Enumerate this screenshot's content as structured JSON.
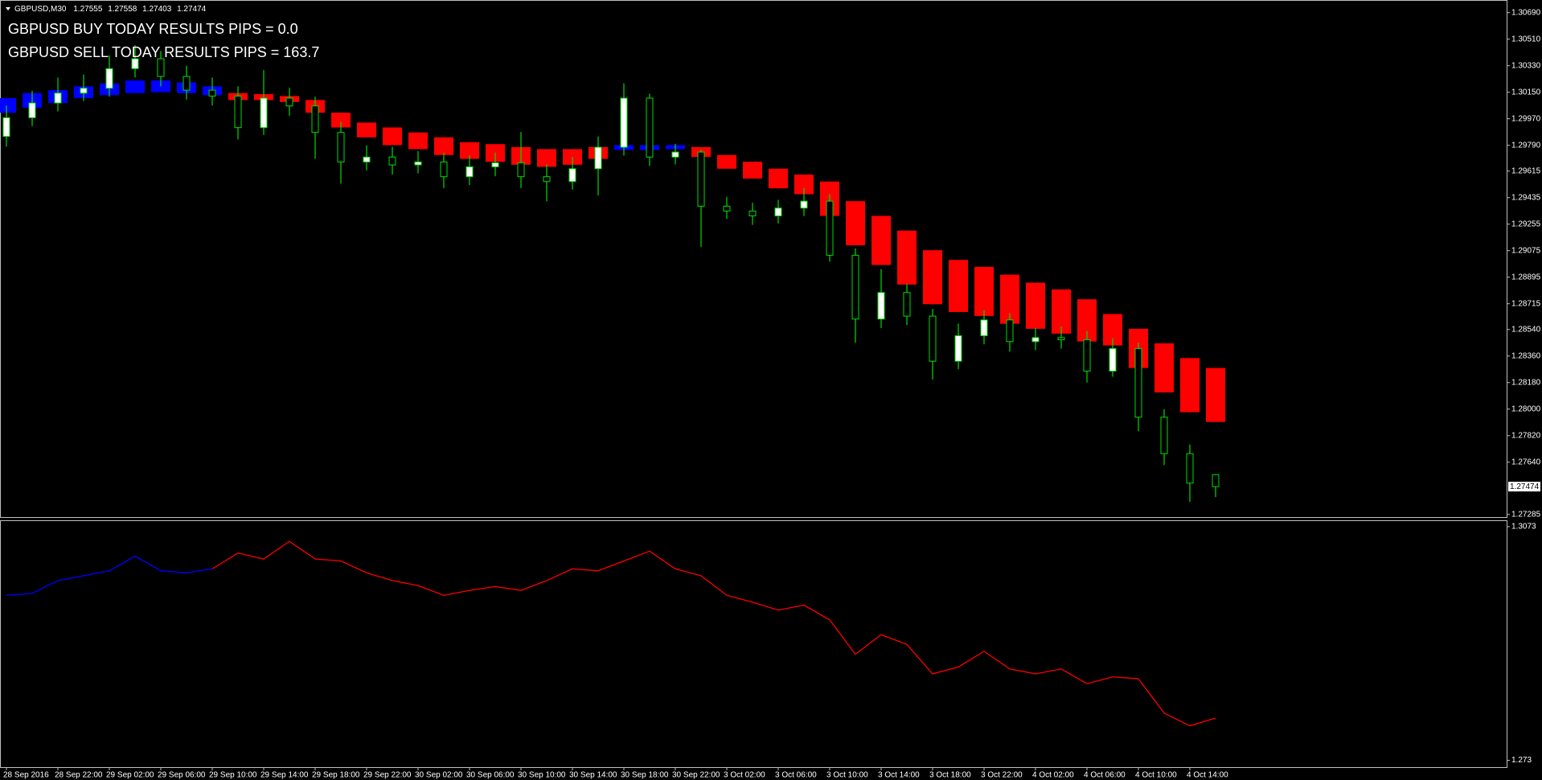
{
  "chart_data": [
    {
      "type": "candlestick",
      "symbol": "GBPUSD,M30",
      "annotations": [
        "GBPUSD BUY TODAY RESULTS PIPS = 0.0",
        "GBPUSD SELL TODAY RESULTS PIPS = 163.7"
      ],
      "open": [
        1.2985,
        1.29977,
        1.30077,
        1.30144,
        1.30177,
        1.3031,
        1.30377,
        1.30257,
        1.30164,
        1.30124,
        1.2991,
        1.3011,
        1.30057,
        1.29877,
        1.29677,
        1.2971,
        1.29657,
        1.29677,
        1.29577,
        1.29644,
        1.29671,
        1.29577,
        1.29544,
        1.29631,
        1.29777,
        1.3011,
        1.2971,
        1.29744,
        1.29377,
        1.29344,
        1.29311,
        1.29364,
        1.29411,
        1.29044,
        1.28611,
        1.28791,
        1.28631,
        1.28325,
        1.28498,
        1.28605,
        1.28458,
        1.28485,
        1.28471,
        1.28258,
        1.28411,
        1.27945,
        1.27698,
        1.27555
      ],
      "high": [
        1.3006,
        1.3016,
        1.3025,
        1.3027,
        1.304,
        1.3047,
        1.3043,
        1.3033,
        1.3025,
        1.3019,
        1.303,
        1.3018,
        1.3012,
        1.2995,
        1.2979,
        1.2978,
        1.2975,
        1.2974,
        1.2972,
        1.2974,
        1.2988,
        1.2966,
        1.2971,
        1.2985,
        1.3021,
        1.3014,
        1.298,
        1.2976,
        1.2944,
        1.294,
        1.2942,
        1.295,
        1.2946,
        1.2909,
        1.2895,
        1.2885,
        1.2868,
        1.2858,
        1.2867,
        1.2865,
        1.2855,
        1.2856,
        1.2853,
        1.2848,
        1.2845,
        1.28,
        1.2776,
        1.27558
      ],
      "low": [
        1.2978,
        1.2992,
        1.3002,
        1.3009,
        1.3012,
        1.3025,
        1.3019,
        1.301,
        1.3006,
        1.2983,
        1.2986,
        1.2999,
        1.297,
        1.2953,
        1.2962,
        1.2959,
        1.296,
        1.295,
        1.2952,
        1.2958,
        1.295,
        1.2941,
        1.2949,
        1.2945,
        1.2972,
        1.2965,
        1.2966,
        1.291,
        1.2929,
        1.2925,
        1.2926,
        1.2931,
        1.29,
        1.2845,
        1.2855,
        1.2857,
        1.282,
        1.2827,
        1.2844,
        1.2839,
        1.284,
        1.2841,
        1.2818,
        1.2822,
        1.2785,
        1.2762,
        1.2737,
        1.27403
      ],
      "close": [
        1.29977,
        1.30077,
        1.30144,
        1.30177,
        1.3031,
        1.30377,
        1.30257,
        1.30164,
        1.30124,
        1.2991,
        1.3011,
        1.30057,
        1.29877,
        1.29677,
        1.2971,
        1.29657,
        1.29677,
        1.29577,
        1.29644,
        1.29671,
        1.29577,
        1.29544,
        1.29631,
        1.29777,
        1.3011,
        1.2971,
        1.29744,
        1.29377,
        1.29344,
        1.29311,
        1.29364,
        1.29411,
        1.29044,
        1.28611,
        1.28791,
        1.28631,
        1.28325,
        1.28498,
        1.28605,
        1.28458,
        1.28485,
        1.28471,
        1.28258,
        1.28411,
        1.27945,
        1.27698,
        1.27498,
        1.27474
      ],
      "up_color": "#ffffff",
      "down_color": "#000000",
      "wick_color": "#00dd00",
      "band": {
        "upper": [
          1.3011,
          1.30144,
          1.30164,
          1.3019,
          1.3021,
          1.3023,
          1.3023,
          1.30217,
          1.3019,
          1.30144,
          1.30137,
          1.30124,
          1.30097,
          1.30011,
          1.29944,
          1.29911,
          1.29877,
          1.29844,
          1.29811,
          1.29798,
          1.29778,
          1.29764,
          1.29764,
          1.29778,
          1.29791,
          1.29791,
          1.29791,
          1.29778,
          1.29724,
          1.29678,
          1.29631,
          1.29591,
          1.29544,
          1.29411,
          1.29311,
          1.29211,
          1.29078,
          1.29012,
          1.28965,
          1.28912,
          1.28858,
          1.28812,
          1.28745,
          1.28645,
          1.28545,
          1.28446,
          1.28346,
          1.28279
        ],
        "lower": [
          1.30011,
          1.30044,
          1.30077,
          1.3011,
          1.3013,
          1.30144,
          1.3015,
          1.30144,
          1.3013,
          1.30097,
          1.30097,
          1.30084,
          1.30011,
          1.29911,
          1.29844,
          1.29791,
          1.29764,
          1.29724,
          1.29698,
          1.29678,
          1.29658,
          1.29644,
          1.29658,
          1.29698,
          1.29758,
          1.29758,
          1.29764,
          1.29711,
          1.29631,
          1.29564,
          1.29498,
          1.29458,
          1.29311,
          1.29112,
          1.28978,
          1.28845,
          1.28712,
          1.28659,
          1.28632,
          1.28579,
          1.28545,
          1.28512,
          1.28459,
          1.28432,
          1.28279,
          1.28113,
          1.27979,
          1.27913
        ],
        "colors": [
          "#0000ff",
          "#0000ff",
          "#0000ff",
          "#0000ff",
          "#0000ff",
          "#0000ff",
          "#0000ff",
          "#0000ff",
          "#0000ff",
          "#ff0000",
          "#ff0000",
          "#ff0000",
          "#ff0000",
          "#ff0000",
          "#ff0000",
          "#ff0000",
          "#ff0000",
          "#ff0000",
          "#ff0000",
          "#ff0000",
          "#ff0000",
          "#ff0000",
          "#ff0000",
          "#ff0000",
          "#0000ff",
          "#0000ff",
          "#0000ff",
          "#ff0000",
          "#ff0000",
          "#ff0000",
          "#ff0000",
          "#ff0000",
          "#ff0000",
          "#ff0000",
          "#ff0000",
          "#ff0000",
          "#ff0000",
          "#ff0000",
          "#ff0000",
          "#ff0000",
          "#ff0000",
          "#ff0000",
          "#ff0000",
          "#ff0000",
          "#ff0000",
          "#ff0000",
          "#ff0000",
          "#ff0000"
        ]
      },
      "ylim": [
        1.27273,
        1.30743
      ],
      "yticks": [
        {
          "value": 1.3069,
          "label": "1.30690"
        },
        {
          "value": 1.3051,
          "label": "1.30510"
        },
        {
          "value": 1.3033,
          "label": "1.30330"
        },
        {
          "value": 1.3015,
          "label": "1.30150"
        },
        {
          "value": 1.2997,
          "label": "1.29970"
        },
        {
          "value": 1.2979,
          "label": "1.29790"
        },
        1.29615,
        1.29435,
        1.29255,
        1.29075,
        1.28895,
        1.28715,
        {
          "value": 1.2854,
          "label": "1.28540"
        },
        {
          "value": 1.2836,
          "label": "1.28360"
        },
        {
          "value": 1.2818,
          "label": "1.28180"
        },
        {
          "value": 1.28,
          "label": "1.28000"
        },
        {
          "value": 1.2782,
          "label": "1.27820"
        },
        {
          "value": 1.2764,
          "label": "1.27640"
        },
        1.27285
      ]
    },
    {
      "type": "line",
      "categories": [
        "28 Sep 2016",
        null,
        "28 Sep 22:00",
        null,
        "29 Sep 02:00",
        null,
        "29 Sep 06:00",
        null,
        "29 Sep 10:00",
        null,
        "29 Sep 14:00",
        null,
        "29 Sep 18:00",
        null,
        "29 Sep 22:00",
        null,
        "30 Sep 02:00",
        null,
        "30 Sep 06:00",
        null,
        "30 Sep 10:00",
        null,
        "30 Sep 14:00",
        null,
        "30 Sep 18:00",
        null,
        "30 Sep 22:00",
        null,
        "3 Oct 02:00",
        null,
        "3 Oct 06:00",
        null,
        "3 Oct 10:00",
        null,
        "3 Oct 14:00",
        null,
        "3 Oct 18:00",
        null,
        "3 Oct 22:00",
        null,
        "4 Oct 02:00",
        null,
        "4 Oct 06:00",
        null,
        "4 Oct 10:00",
        null,
        "4 Oct 14:00",
        null
      ],
      "series": [
        {
          "color": "#0000ff",
          "values": [
            1.29722,
            1.29751,
            1.29938,
            1.3001,
            1.30082,
            1.30298,
            1.30082,
            1.30053,
            1.30111,
            null,
            null,
            null,
            null,
            null,
            null,
            null,
            null,
            null,
            null,
            null,
            null,
            null,
            null,
            null,
            null,
            null,
            null,
            null,
            null,
            null,
            null,
            null,
            null,
            null,
            null,
            null,
            null,
            null,
            null,
            null,
            null,
            null,
            null,
            null,
            null,
            null,
            null,
            null
          ]
        },
        {
          "color": "#ff0000",
          "values": [
            null,
            null,
            null,
            null,
            null,
            null,
            null,
            null,
            1.30111,
            1.30342,
            1.30255,
            1.30514,
            1.30255,
            1.30226,
            1.30053,
            1.29938,
            1.29865,
            1.29722,
            1.29794,
            1.29851,
            1.29794,
            1.29938,
            1.30111,
            1.30082,
            1.30226,
            1.3037,
            1.30111,
            1.3001,
            1.29722,
            1.29621,
            1.29505,
            1.29578,
            1.29361,
            1.28857,
            1.29145,
            1.29001,
            1.28569,
            1.2867,
            1.289,
            1.28641,
            1.28569,
            1.28641,
            1.28425,
            1.28525,
            1.28497,
            1.27993,
            1.27806,
            1.2792
          ]
        }
      ],
      "ylim": [
        1.272,
        1.308
      ],
      "yticks": [
        1.3073,
        1.273
      ]
    }
  ]
}
